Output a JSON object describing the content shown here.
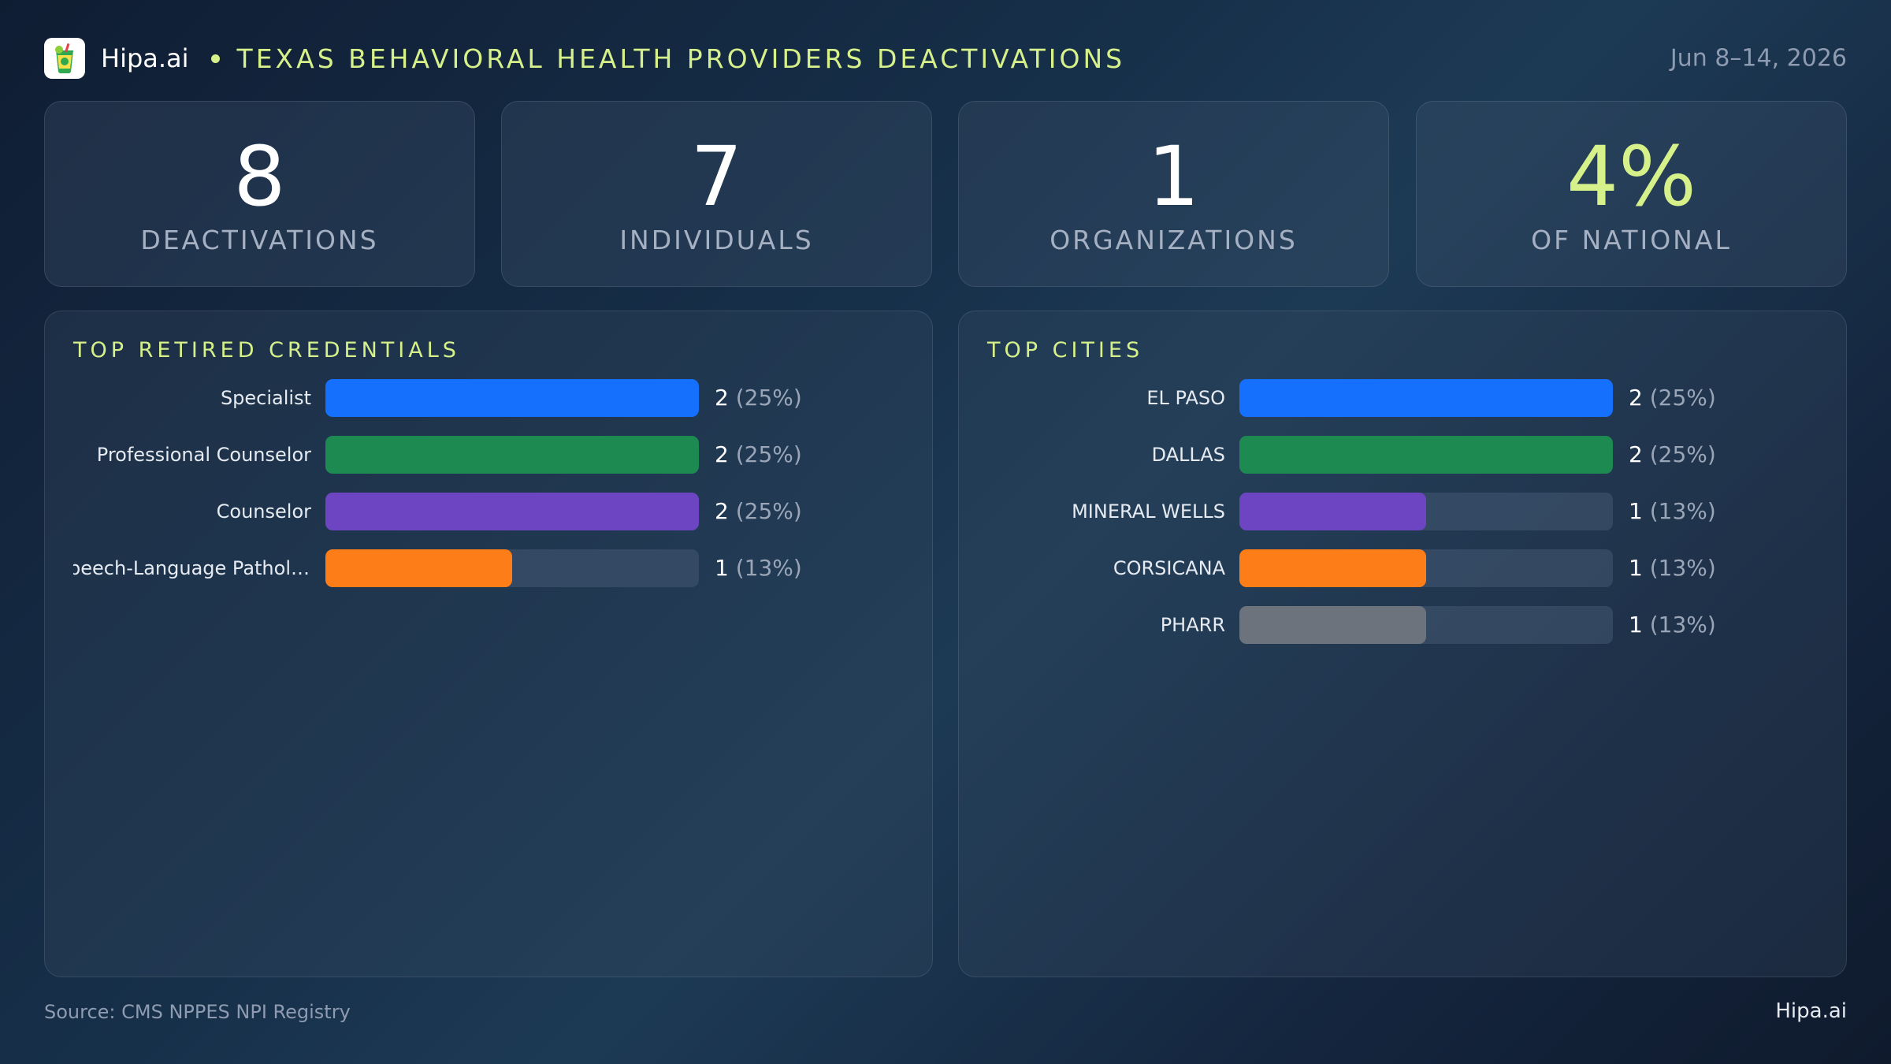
{
  "header": {
    "brand": "Hipa.ai",
    "title": "TEXAS BEHAVIORAL HEALTH PROVIDERS DEACTIVATIONS",
    "date": "Jun 8–14, 2026",
    "logo_icon": "lime-cup-icon"
  },
  "colors": {
    "accent": "#d6f08a",
    "blue": "#1570fe",
    "green": "#1d8a52",
    "purple": "#6d45c2",
    "orange": "#fd7e18",
    "gray": "#6c737d"
  },
  "kpis": [
    {
      "value": "8",
      "label": "DEACTIVATIONS"
    },
    {
      "value": "7",
      "label": "INDIVIDUALS"
    },
    {
      "value": "1",
      "label": "ORGANIZATIONS"
    },
    {
      "value": "4%",
      "label": "OF NATIONAL"
    }
  ],
  "chart_data": [
    {
      "type": "bar",
      "orientation": "horizontal",
      "title": "TOP RETIRED CREDENTIALS",
      "categories": [
        "Specialist",
        "Professional Counselor",
        "Counselor",
        "Speech-Language Pathol…"
      ],
      "values": [
        2,
        2,
        2,
        1
      ],
      "percent_labels": [
        "(25%)",
        "(25%)",
        "(25%)",
        "(13%)"
      ],
      "colors": [
        "#1570fe",
        "#1d8a52",
        "#6d45c2",
        "#fd7e18"
      ],
      "xlim": [
        0,
        2
      ]
    },
    {
      "type": "bar",
      "orientation": "horizontal",
      "title": "TOP CITIES",
      "categories": [
        "EL PASO",
        "DALLAS",
        "MINERAL WELLS",
        "CORSICANA",
        "PHARR"
      ],
      "values": [
        2,
        2,
        1,
        1,
        1
      ],
      "percent_labels": [
        "(25%)",
        "(25%)",
        "(13%)",
        "(13%)",
        "(13%)"
      ],
      "colors": [
        "#1570fe",
        "#1d8a52",
        "#6d45c2",
        "#fd7e18",
        "#6c737d"
      ],
      "xlim": [
        0,
        2
      ]
    }
  ],
  "footer": {
    "source": "Source: CMS NPPES NPI Registry",
    "brand": "Hipa.ai"
  }
}
